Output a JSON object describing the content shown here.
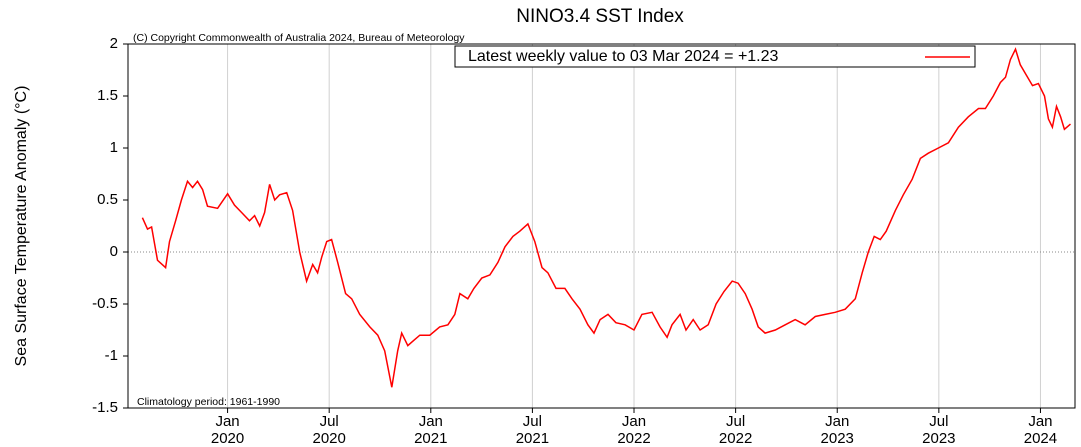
{
  "chart_data": {
    "type": "line",
    "title": "NINO3.4 SST Index",
    "subtitle": "(C) Copyright Commonwealth of Australia 2024, Bureau of Meteorology",
    "y_label": "Sea Surface Temperature Anomaly (°C)",
    "annotation": "Climatology period: 1961-1990",
    "x": [
      2019.581,
      2019.606,
      2019.626,
      2019.655,
      2019.695,
      2019.714,
      2019.744,
      2019.773,
      2019.803,
      2019.828,
      2019.852,
      2019.877,
      2019.901,
      2019.951,
      2020.0,
      2020.034,
      2020.069,
      2020.108,
      2020.133,
      2020.158,
      2020.182,
      2020.207,
      2020.232,
      2020.256,
      2020.291,
      2020.32,
      2020.355,
      2020.389,
      2020.419,
      2020.443,
      2020.463,
      2020.488,
      2020.512,
      2020.542,
      2020.581,
      2020.611,
      2020.65,
      2020.7,
      2020.739,
      2020.773,
      2020.808,
      2020.837,
      2020.857,
      2020.887,
      2020.916,
      2020.946,
      2020.995,
      2021.044,
      2021.084,
      2021.118,
      2021.143,
      2021.182,
      2021.212,
      2021.251,
      2021.291,
      2021.33,
      2021.365,
      2021.404,
      2021.438,
      2021.478,
      2021.512,
      2021.547,
      2021.576,
      2021.616,
      2021.66,
      2021.695,
      2021.734,
      2021.773,
      2021.803,
      2021.833,
      2021.872,
      2021.911,
      2021.956,
      2022.0,
      2022.039,
      2022.089,
      2022.128,
      2022.163,
      2022.187,
      2022.227,
      2022.256,
      2022.291,
      2022.325,
      2022.365,
      2022.404,
      2022.443,
      2022.483,
      2022.512,
      2022.547,
      2022.581,
      2022.611,
      2022.645,
      2022.695,
      2022.744,
      2022.793,
      2022.842,
      2022.892,
      2022.941,
      2022.99,
      2023.039,
      2023.089,
      2023.123,
      2023.153,
      2023.182,
      2023.212,
      2023.241,
      2023.286,
      2023.325,
      2023.369,
      2023.409,
      2023.448,
      2023.498,
      2023.547,
      2023.596,
      2023.645,
      2023.695,
      2023.729,
      2023.768,
      2023.803,
      2023.828,
      2023.852,
      2023.877,
      2023.901,
      2023.931,
      2023.961,
      2023.99,
      2024.02,
      2024.039,
      2024.059,
      2024.079,
      2024.099,
      2024.118,
      2024.148
    ],
    "series": [
      {
        "name": "Latest weekly value to 03 Mar 2024 = +1.23",
        "color": "#ff0000",
        "values": [
          0.33,
          0.22,
          0.24,
          -0.08,
          -0.15,
          0.1,
          0.3,
          0.5,
          0.68,
          0.62,
          0.68,
          0.6,
          0.44,
          0.42,
          0.56,
          0.45,
          0.38,
          0.3,
          0.35,
          0.25,
          0.38,
          0.65,
          0.5,
          0.55,
          0.57,
          0.4,
          0.0,
          -0.28,
          -0.12,
          -0.2,
          -0.05,
          0.1,
          0.12,
          -0.1,
          -0.4,
          -0.45,
          -0.6,
          -0.72,
          -0.8,
          -0.95,
          -1.3,
          -0.95,
          -0.78,
          -0.9,
          -0.85,
          -0.8,
          -0.8,
          -0.72,
          -0.7,
          -0.6,
          -0.4,
          -0.45,
          -0.35,
          -0.25,
          -0.22,
          -0.1,
          0.05,
          0.15,
          0.2,
          0.27,
          0.1,
          -0.15,
          -0.2,
          -0.35,
          -0.35,
          -0.45,
          -0.55,
          -0.7,
          -0.78,
          -0.65,
          -0.6,
          -0.68,
          -0.7,
          -0.75,
          -0.6,
          -0.58,
          -0.72,
          -0.82,
          -0.7,
          -0.6,
          -0.75,
          -0.65,
          -0.75,
          -0.7,
          -0.5,
          -0.38,
          -0.28,
          -0.3,
          -0.4,
          -0.55,
          -0.72,
          -0.78,
          -0.75,
          -0.7,
          -0.65,
          -0.7,
          -0.62,
          -0.6,
          -0.58,
          -0.55,
          -0.45,
          -0.2,
          0.0,
          0.15,
          0.12,
          0.2,
          0.4,
          0.55,
          0.7,
          0.9,
          0.95,
          1.0,
          1.05,
          1.2,
          1.3,
          1.38,
          1.38,
          1.5,
          1.63,
          1.68,
          1.85,
          1.95,
          1.8,
          1.7,
          1.6,
          1.62,
          1.5,
          1.28,
          1.2,
          1.4,
          1.3,
          1.18,
          1.23
        ]
      }
    ],
    "xlim": [
      2019.51,
      2024.17
    ],
    "xticks": [
      {
        "value": 2020,
        "label": "Jan 2020"
      },
      {
        "value": 2020.5,
        "label": "Jul 2020"
      },
      {
        "value": 2021,
        "label": "Jan 2021"
      },
      {
        "value": 2021.5,
        "label": "Jul 2021"
      },
      {
        "value": 2022,
        "label": "Jan 2022"
      },
      {
        "value": 2022.5,
        "label": "Jul 2022"
      },
      {
        "value": 2023,
        "label": "Jan 2023"
      },
      {
        "value": 2023.5,
        "label": "Jul 2023"
      },
      {
        "value": 2024,
        "label": "Jan 2024"
      }
    ],
    "ylim": [
      -1.5,
      2
    ],
    "yticks": [
      -1.5,
      -1,
      -0.5,
      0,
      0.5,
      1,
      1.5,
      2
    ],
    "grid": true,
    "legend": "upper right"
  }
}
